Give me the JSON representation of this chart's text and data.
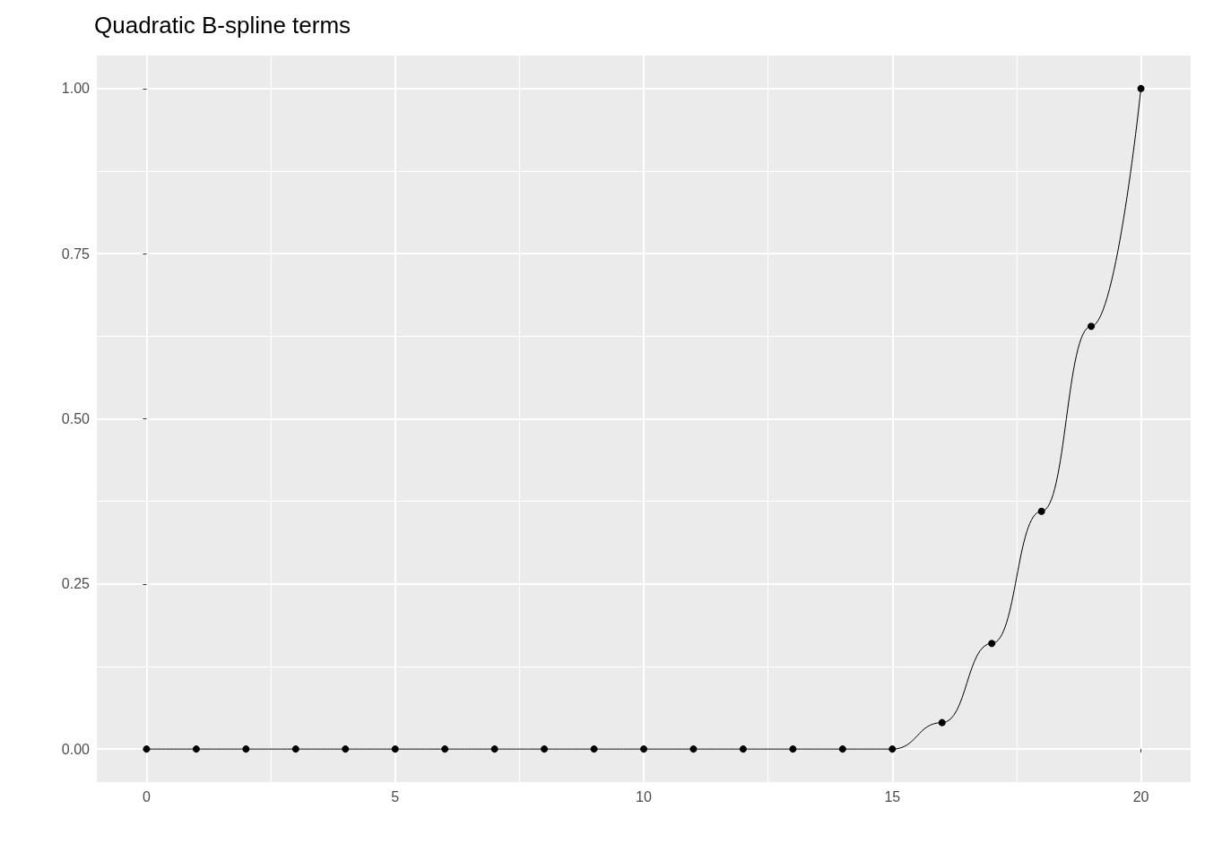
{
  "chart_data": {
    "type": "line",
    "title": "Quadratic B-spline terms",
    "x": [
      0,
      1,
      2,
      3,
      4,
      5,
      6,
      7,
      8,
      9,
      10,
      11,
      12,
      13,
      14,
      15,
      16,
      17,
      18,
      19,
      20
    ],
    "values": [
      0,
      0,
      0,
      0,
      0,
      0,
      0,
      0,
      0,
      0,
      0,
      0,
      0,
      0,
      0,
      0,
      0.04,
      0.16,
      0.36,
      0.64,
      1.0
    ],
    "color": "#000000",
    "marker": "circle",
    "line_style": "solid",
    "xlim": [
      -1,
      21
    ],
    "xticks": [
      0,
      5,
      10,
      15,
      20
    ],
    "ylim": [
      -0.05,
      1.05
    ],
    "yticks": [
      {
        "value": 0,
        "label": "0.00"
      },
      {
        "value": 0.25,
        "label": "0.25"
      },
      {
        "value": 0.5,
        "label": "0.50"
      },
      {
        "value": 0.75,
        "label": "0.75"
      },
      {
        "value": 1,
        "label": "1.00"
      }
    ],
    "grid": true
  }
}
